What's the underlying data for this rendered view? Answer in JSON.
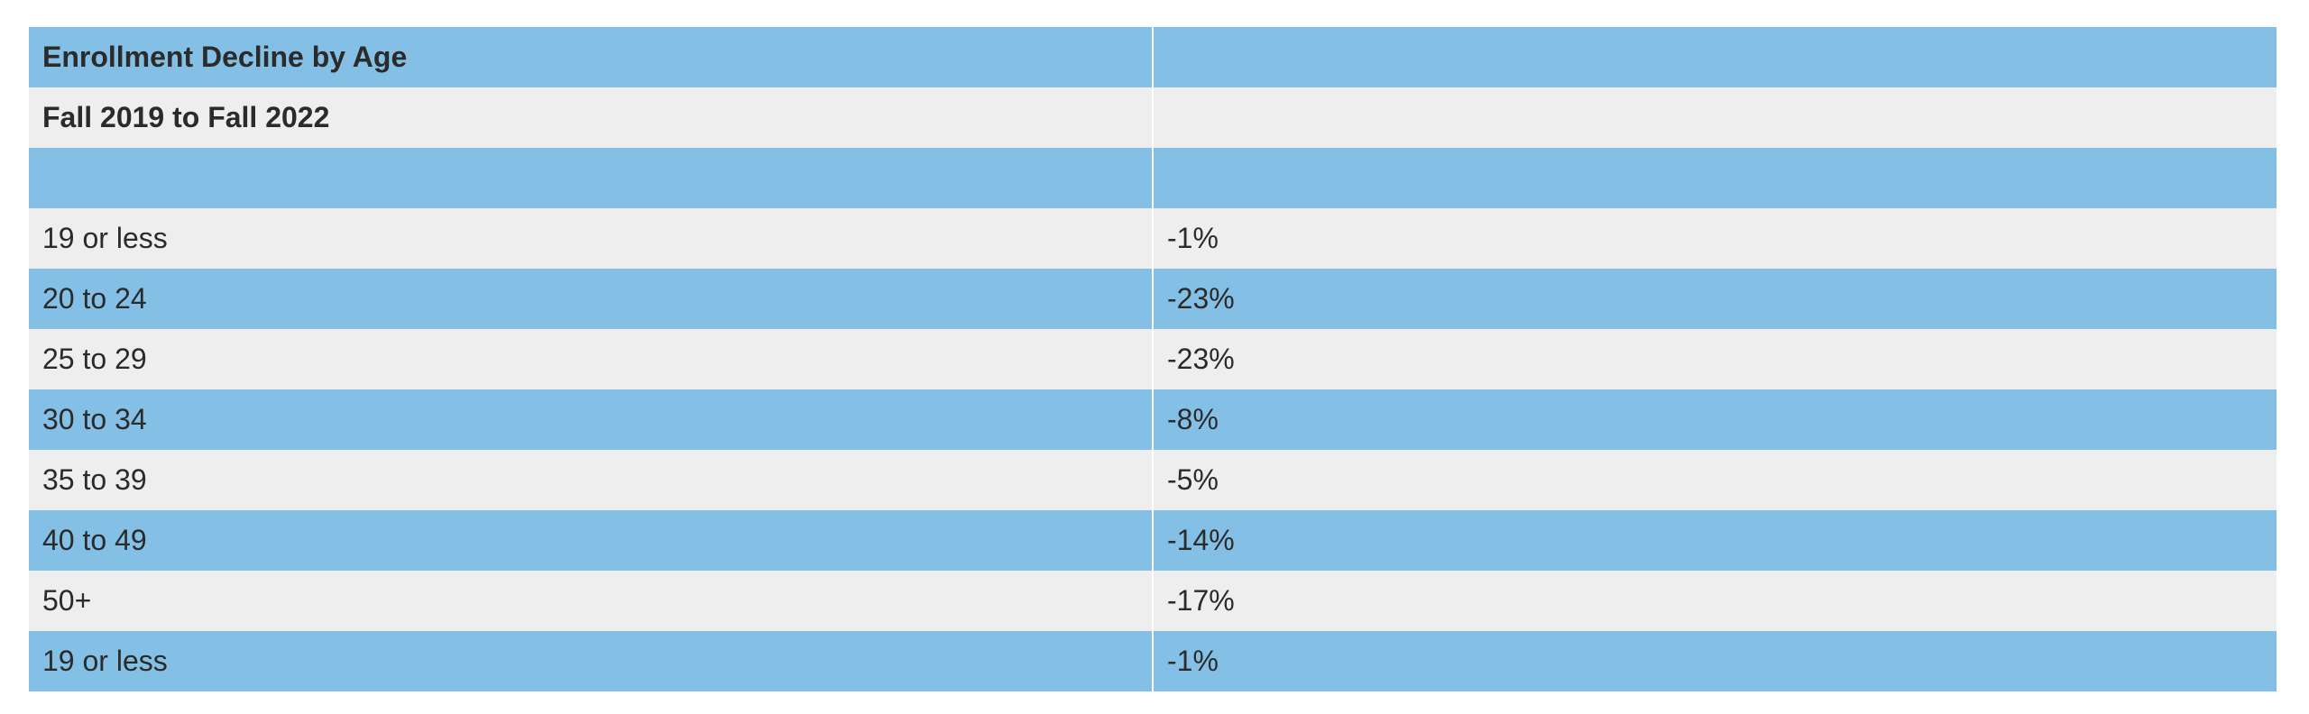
{
  "table": {
    "title": "Enrollment Decline by Age",
    "subtitle": "Fall 2019 to Fall 2022",
    "rows": [
      {
        "age": "19 or less",
        "decline": "-1%"
      },
      {
        "age": "20 to 24",
        "decline": "-23%"
      },
      {
        "age": "25 to 29",
        "decline": "-23%"
      },
      {
        "age": "30 to 34",
        "decline": "-8%"
      },
      {
        "age": "35 to 39",
        "decline": "-5%"
      },
      {
        "age": "40 to 49",
        "decline": "-14%"
      },
      {
        "age": "50+",
        "decline": "-17%"
      },
      {
        "age": "19 or less",
        "decline": "-1%"
      }
    ]
  },
  "colors": {
    "band_blue": "#84c0e6",
    "band_grey": "#eeeeee",
    "text": "#2b2b2b"
  }
}
